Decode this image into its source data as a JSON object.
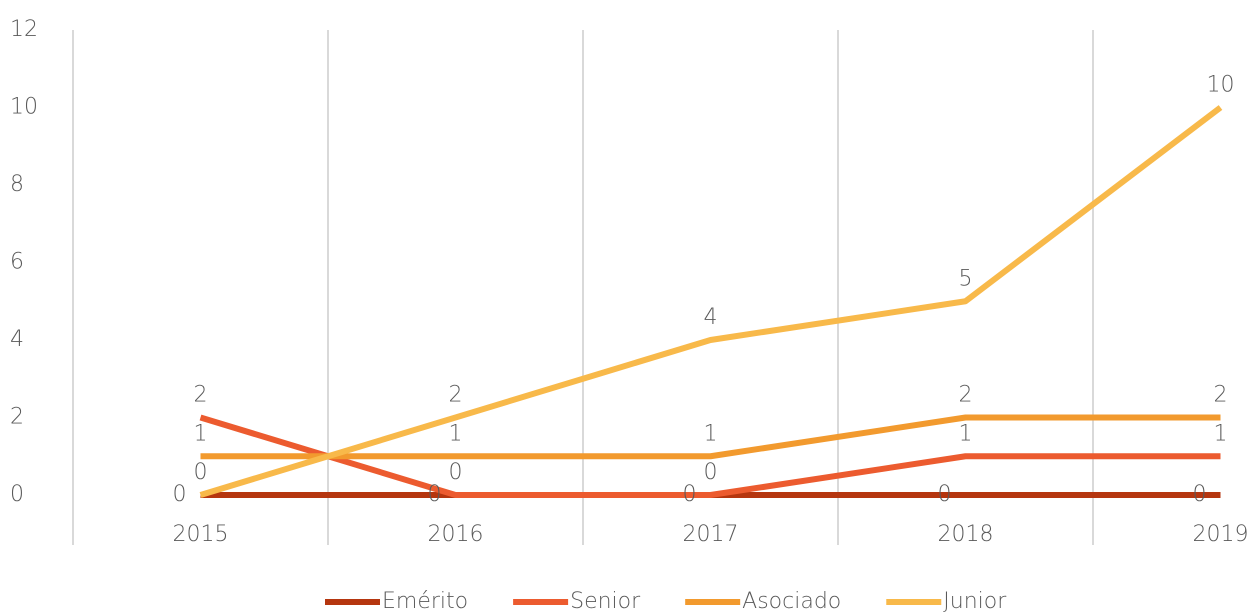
{
  "chart_data": {
    "type": "line",
    "categories": [
      "2015",
      "2016",
      "2017",
      "2018",
      "2019"
    ],
    "series": [
      {
        "name": "Emérito",
        "color": "#b5360f",
        "values": [
          0,
          0,
          0,
          0,
          0
        ]
      },
      {
        "name": "Senior",
        "color": "#ec5b2f",
        "values": [
          2,
          0,
          0,
          1,
          1
        ]
      },
      {
        "name": "Asociado",
        "color": "#f29a2e",
        "values": [
          1,
          1,
          1,
          2,
          2
        ]
      },
      {
        "name": "Junior",
        "color": "#f8b94a",
        "values": [
          0,
          2,
          4,
          5,
          10
        ]
      }
    ],
    "ylim": [
      0,
      12
    ],
    "yticks": [
      0,
      2,
      4,
      6,
      8,
      10,
      12
    ],
    "grid": "vertical",
    "data_labels": true,
    "legend": "bottom"
  }
}
